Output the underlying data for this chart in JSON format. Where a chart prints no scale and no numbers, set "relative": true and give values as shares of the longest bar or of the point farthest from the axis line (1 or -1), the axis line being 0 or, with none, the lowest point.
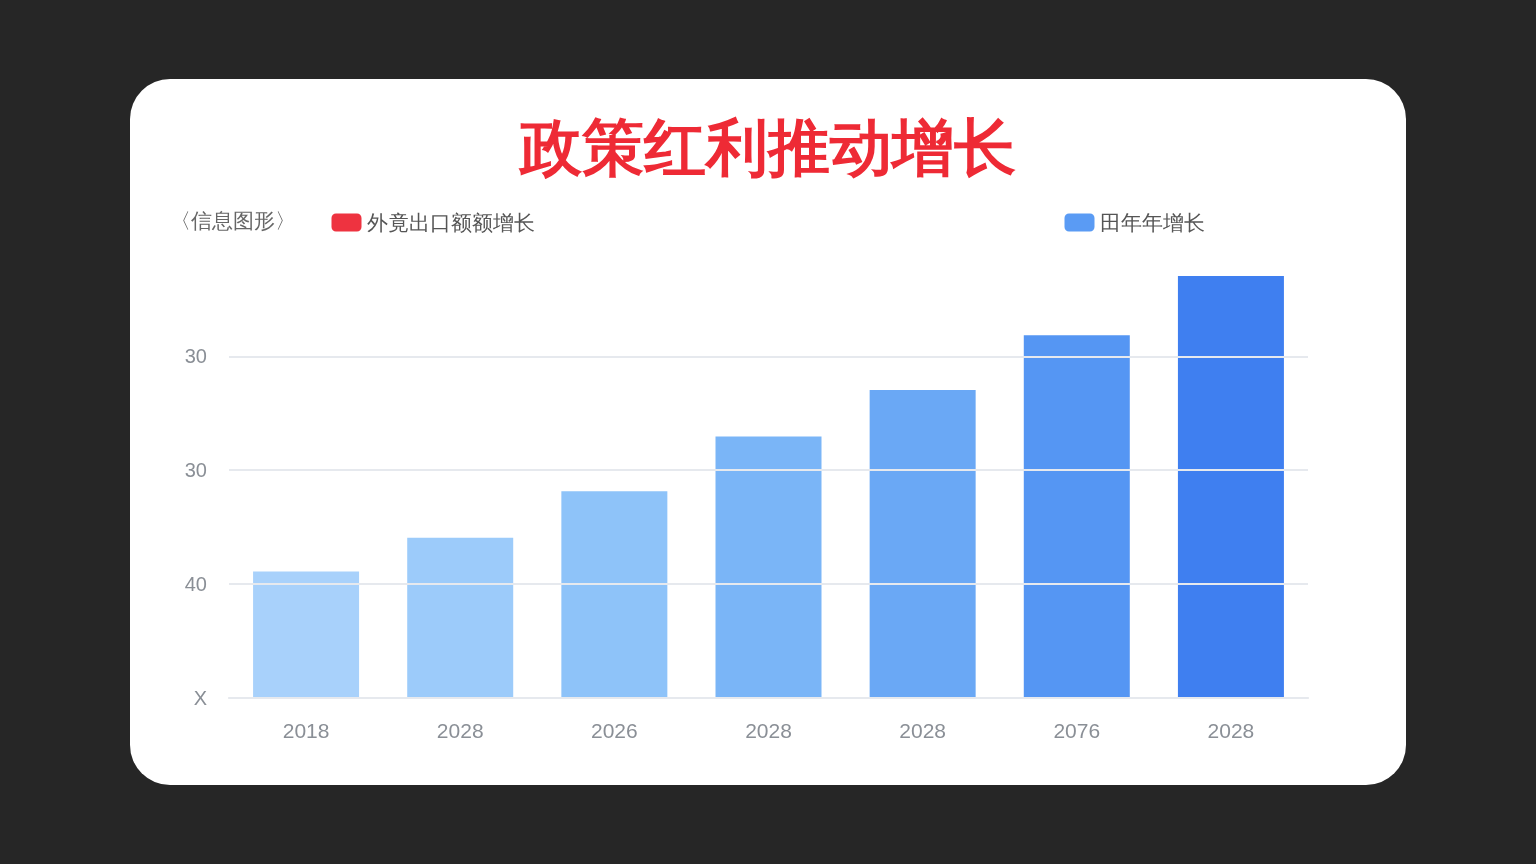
{
  "chart_data": {
    "type": "bar",
    "title": "政策红利推动增长",
    "relative": true,
    "annotations": [
      "〈信息图形〉",
      "X",
      "40",
      "30",
      "30"
    ],
    "categories": [
      "2018",
      "2028",
      "2026",
      "2028",
      "2028",
      "2076",
      "2028"
    ],
    "series": [
      {
        "name": "外竟出口额额增长",
        "color": "#ee3340",
        "values": [
          null,
          null,
          null,
          null,
          null,
          null,
          null
        ]
      },
      {
        "name": "田年年增长",
        "color": "#5a9bf4",
        "colors": [
          "#a8d1fb",
          "#9ccbfa",
          "#8ec3f9",
          "#7ab5f7",
          "#6aa8f5",
          "#5596f3",
          "#3f7ff0"
        ],
        "values": [
          0.3,
          0.38,
          0.49,
          0.62,
          0.73,
          0.86,
          1
        ]
      }
    ],
    "grid": "y",
    "legend": "top"
  }
}
